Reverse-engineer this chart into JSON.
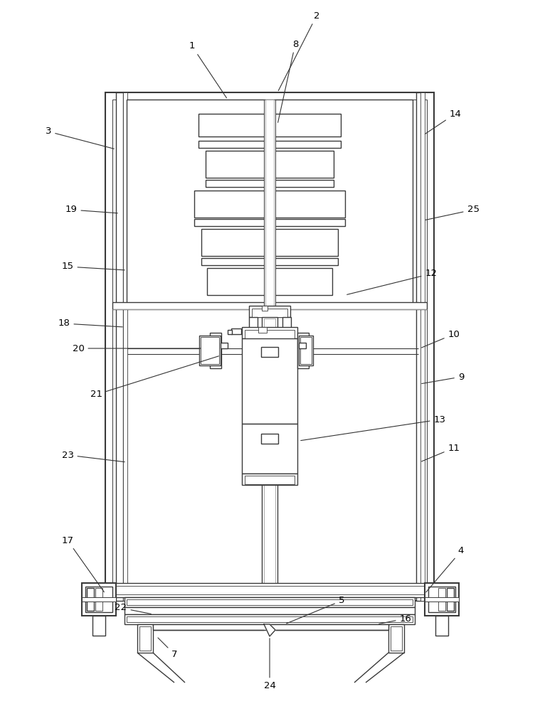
{
  "bg_color": "#ffffff",
  "lc": "#3a3a3a",
  "lw": 1.0,
  "tlw": 1.5,
  "fig_width": 7.59,
  "fig_height": 10.0,
  "label_fs": 9.5,
  "ann_lc": "#333333",
  "ann_lw": 0.8
}
